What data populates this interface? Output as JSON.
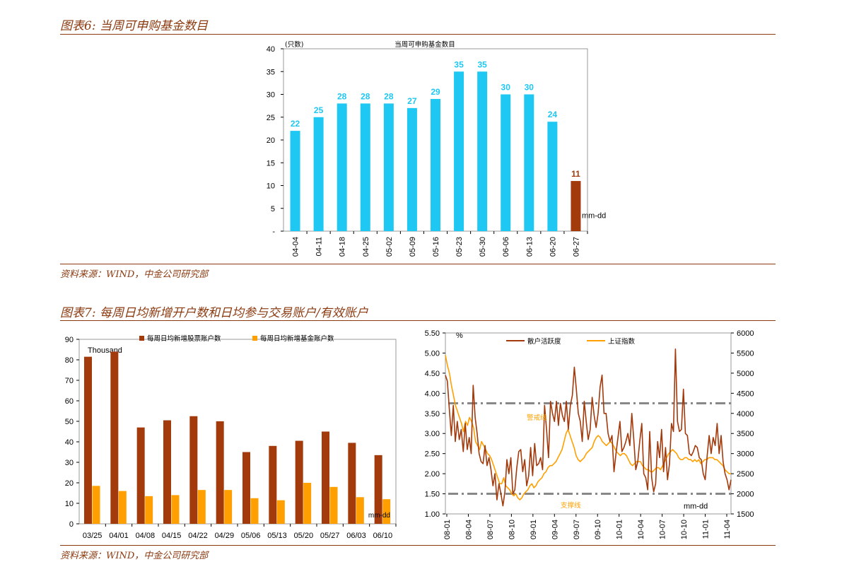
{
  "figure6": {
    "heading": "图表6: 当周可申购基金数目",
    "source": "资料来源：WIND，中金公司研究部"
  },
  "figure7": {
    "heading": "图表7: 每周日均新增开户数和日均参与交易账户/有效账户",
    "source": "资料来源：WIND，中金公司研究部"
  },
  "colors": {
    "brand": "#8b3a10",
    "cyan": "#1ec8f2",
    "rust": "#a33a0c",
    "orange": "#ffa000",
    "dash": "#888888"
  },
  "chart_data": [
    {
      "id": "fund-count",
      "type": "bar",
      "title": "当周可申购基金数目",
      "unit": "(只数)",
      "xlabel": "mm-dd",
      "ylabel": "",
      "ylim": [
        0,
        40
      ],
      "yticks": [
        "-",
        "5",
        "10",
        "15",
        "20",
        "25",
        "30",
        "35",
        "40"
      ],
      "categories": [
        "04-04",
        "04-11",
        "04-18",
        "04-25",
        "05-02",
        "05-09",
        "05-16",
        "05-23",
        "05-30",
        "06-06",
        "06-13",
        "06-20",
        "06-27"
      ],
      "values": [
        22,
        25,
        28,
        28,
        28,
        27,
        29,
        35,
        35,
        30,
        30,
        24,
        11
      ],
      "highlight_last": true
    },
    {
      "id": "new-accounts",
      "type": "bar",
      "title": "",
      "unit": "Thousand",
      "xlabel": "mm-dd",
      "ylabel": "",
      "ylim": [
        0,
        90
      ],
      "yticks": [
        "0",
        "10",
        "20",
        "30",
        "40",
        "50",
        "60",
        "70",
        "80",
        "90"
      ],
      "categories": [
        "03/25",
        "04/01",
        "04/08",
        "04/15",
        "04/22",
        "04/29",
        "05/06",
        "05/13",
        "05/20",
        "05/27",
        "06/03",
        "06/10"
      ],
      "series": [
        {
          "name": "每周日均新增股票账户数",
          "values": [
            81.5,
            84,
            47,
            50.5,
            52.5,
            50,
            35,
            38,
            40.5,
            45,
            39.5,
            33.5
          ]
        },
        {
          "name": "每周日均新增基金账户数",
          "values": [
            18.5,
            16,
            13.5,
            14,
            16.5,
            16.5,
            12.5,
            11.5,
            20,
            18,
            13,
            12
          ]
        }
      ]
    },
    {
      "id": "activity",
      "type": "line",
      "title": "",
      "unit": "%",
      "xlabel": "mm-dd",
      "ylim": [
        1.0,
        5.5
      ],
      "y2lim": [
        1500,
        6000
      ],
      "yticks": [
        "1.00",
        "1.50",
        "2.00",
        "2.50",
        "3.00",
        "3.50",
        "4.00",
        "4.50",
        "5.00",
        "5.50"
      ],
      "y2ticks": [
        "1500",
        "2000",
        "2500",
        "3000",
        "3500",
        "4000",
        "4500",
        "5000",
        "5500",
        "6000"
      ],
      "x_ticks": [
        "08-01",
        "08-04",
        "08-07",
        "08-10",
        "09-01",
        "09-04",
        "09-07",
        "09-10",
        "10-01",
        "10-04",
        "10-07",
        "10-10",
        "11-01",
        "11-04"
      ],
      "series": [
        {
          "name": "散户活跃度",
          "axis": "left",
          "values": [
            4.45,
            4.3,
            3.6,
            2.95,
            3.7,
            2.8,
            3.3,
            2.85,
            3.1,
            2.55,
            3.25,
            2.6,
            2.9,
            2.5,
            4.2,
            3.4,
            3.0,
            2.5,
            2.3,
            2.25,
            2.7,
            2.2,
            2.4,
            2.1,
            1.7,
            2.0,
            1.35,
            1.75,
            1.5,
            1.2,
            1.55,
            2.35,
            2.0,
            2.4,
            1.5,
            1.6,
            2.15,
            2.55,
            2.6,
            2.05,
            2.35,
            1.7,
            1.95,
            2.65,
            1.95,
            2.75,
            2.2,
            2.25,
            2.4,
            2.1,
            3.7,
            3.1,
            2.4,
            3.8,
            3.5,
            3.3,
            3.8,
            3.2,
            3.75,
            3.45,
            3.3,
            3.8,
            3.1,
            3.7,
            3.95,
            4.65,
            4.1,
            3.5,
            3.3,
            2.8,
            3.8,
            3.3,
            2.85,
            3.1,
            3.9,
            3.45,
            3.15,
            3.5,
            4.15,
            4.45,
            3.5,
            3.5,
            3.0,
            2.8,
            2.95,
            2.05,
            2.5,
            2.9,
            3.3,
            2.55,
            2.65,
            2.8,
            3.0,
            2.7,
            3.5,
            2.85,
            2.1,
            2.3,
            2.8,
            3.25,
            2.0,
            1.9,
            1.6,
            3.05,
            1.9,
            1.55,
            1.75,
            2.8,
            2.4,
            3.1,
            2.05,
            2.65,
            1.85,
            2.25,
            3.25,
            3.05,
            5.1,
            3.3,
            3.05,
            3.1,
            4.1,
            3.0,
            2.95,
            2.5,
            2.45,
            2.55,
            2.7,
            2.65,
            2.4,
            2.35,
            2.0,
            1.85,
            2.45,
            2.95,
            2.5,
            2.9,
            2.7,
            3.25,
            2.5,
            2.95,
            2.3,
            2.0,
            1.85,
            1.6,
            1.85
          ]
        },
        {
          "name": "上证指数",
          "axis": "right",
          "values": [
            5450,
            5200,
            5000,
            4700,
            4450,
            4200,
            4050,
            3900,
            3750,
            3550,
            3800,
            3700,
            3900,
            3800,
            3650,
            3300,
            3200,
            3100,
            3300,
            3200,
            3100,
            3000,
            2950,
            2850,
            2700,
            2550,
            2400,
            2250,
            2250,
            2400,
            2200,
            2150,
            2100,
            2000,
            1950,
            2000,
            1900,
            1850,
            1900,
            2000,
            2050,
            2100,
            2200,
            2250,
            2150,
            2200,
            2300,
            2350,
            2400,
            2500,
            2550,
            2650,
            2700,
            2700,
            2750,
            2800,
            2900,
            3000,
            3100,
            3300,
            3500,
            3600,
            3450,
            3300,
            3150,
            2950,
            2850,
            2800,
            2850,
            2900,
            3000,
            3050,
            3100,
            3150,
            3300,
            3400,
            3450,
            3400,
            3300,
            3250,
            3200,
            3250,
            3300,
            3250,
            3150,
            3050,
            3000,
            2950,
            3000,
            3000,
            2950,
            2850,
            2750,
            2700,
            2750,
            2800,
            2800,
            2800,
            2700,
            2650,
            2600,
            2600,
            2550,
            2550,
            2600,
            2650,
            2650,
            2600,
            2700,
            2800,
            2900,
            3000,
            3050,
            3100,
            3050,
            3000,
            2900,
            2850,
            2850,
            2900,
            2900,
            2850,
            2850,
            2800,
            2850,
            2800,
            2850,
            2750,
            2800,
            2850,
            2850,
            2900,
            2900,
            2900,
            2850,
            2850,
            2800,
            2750,
            2700,
            2600,
            2550,
            2500,
            2500
          ]
        }
      ],
      "reference_lines": [
        {
          "name": "警戒线",
          "value": 3.75
        },
        {
          "name": "支撑线",
          "value": 1.5
        }
      ]
    }
  ]
}
